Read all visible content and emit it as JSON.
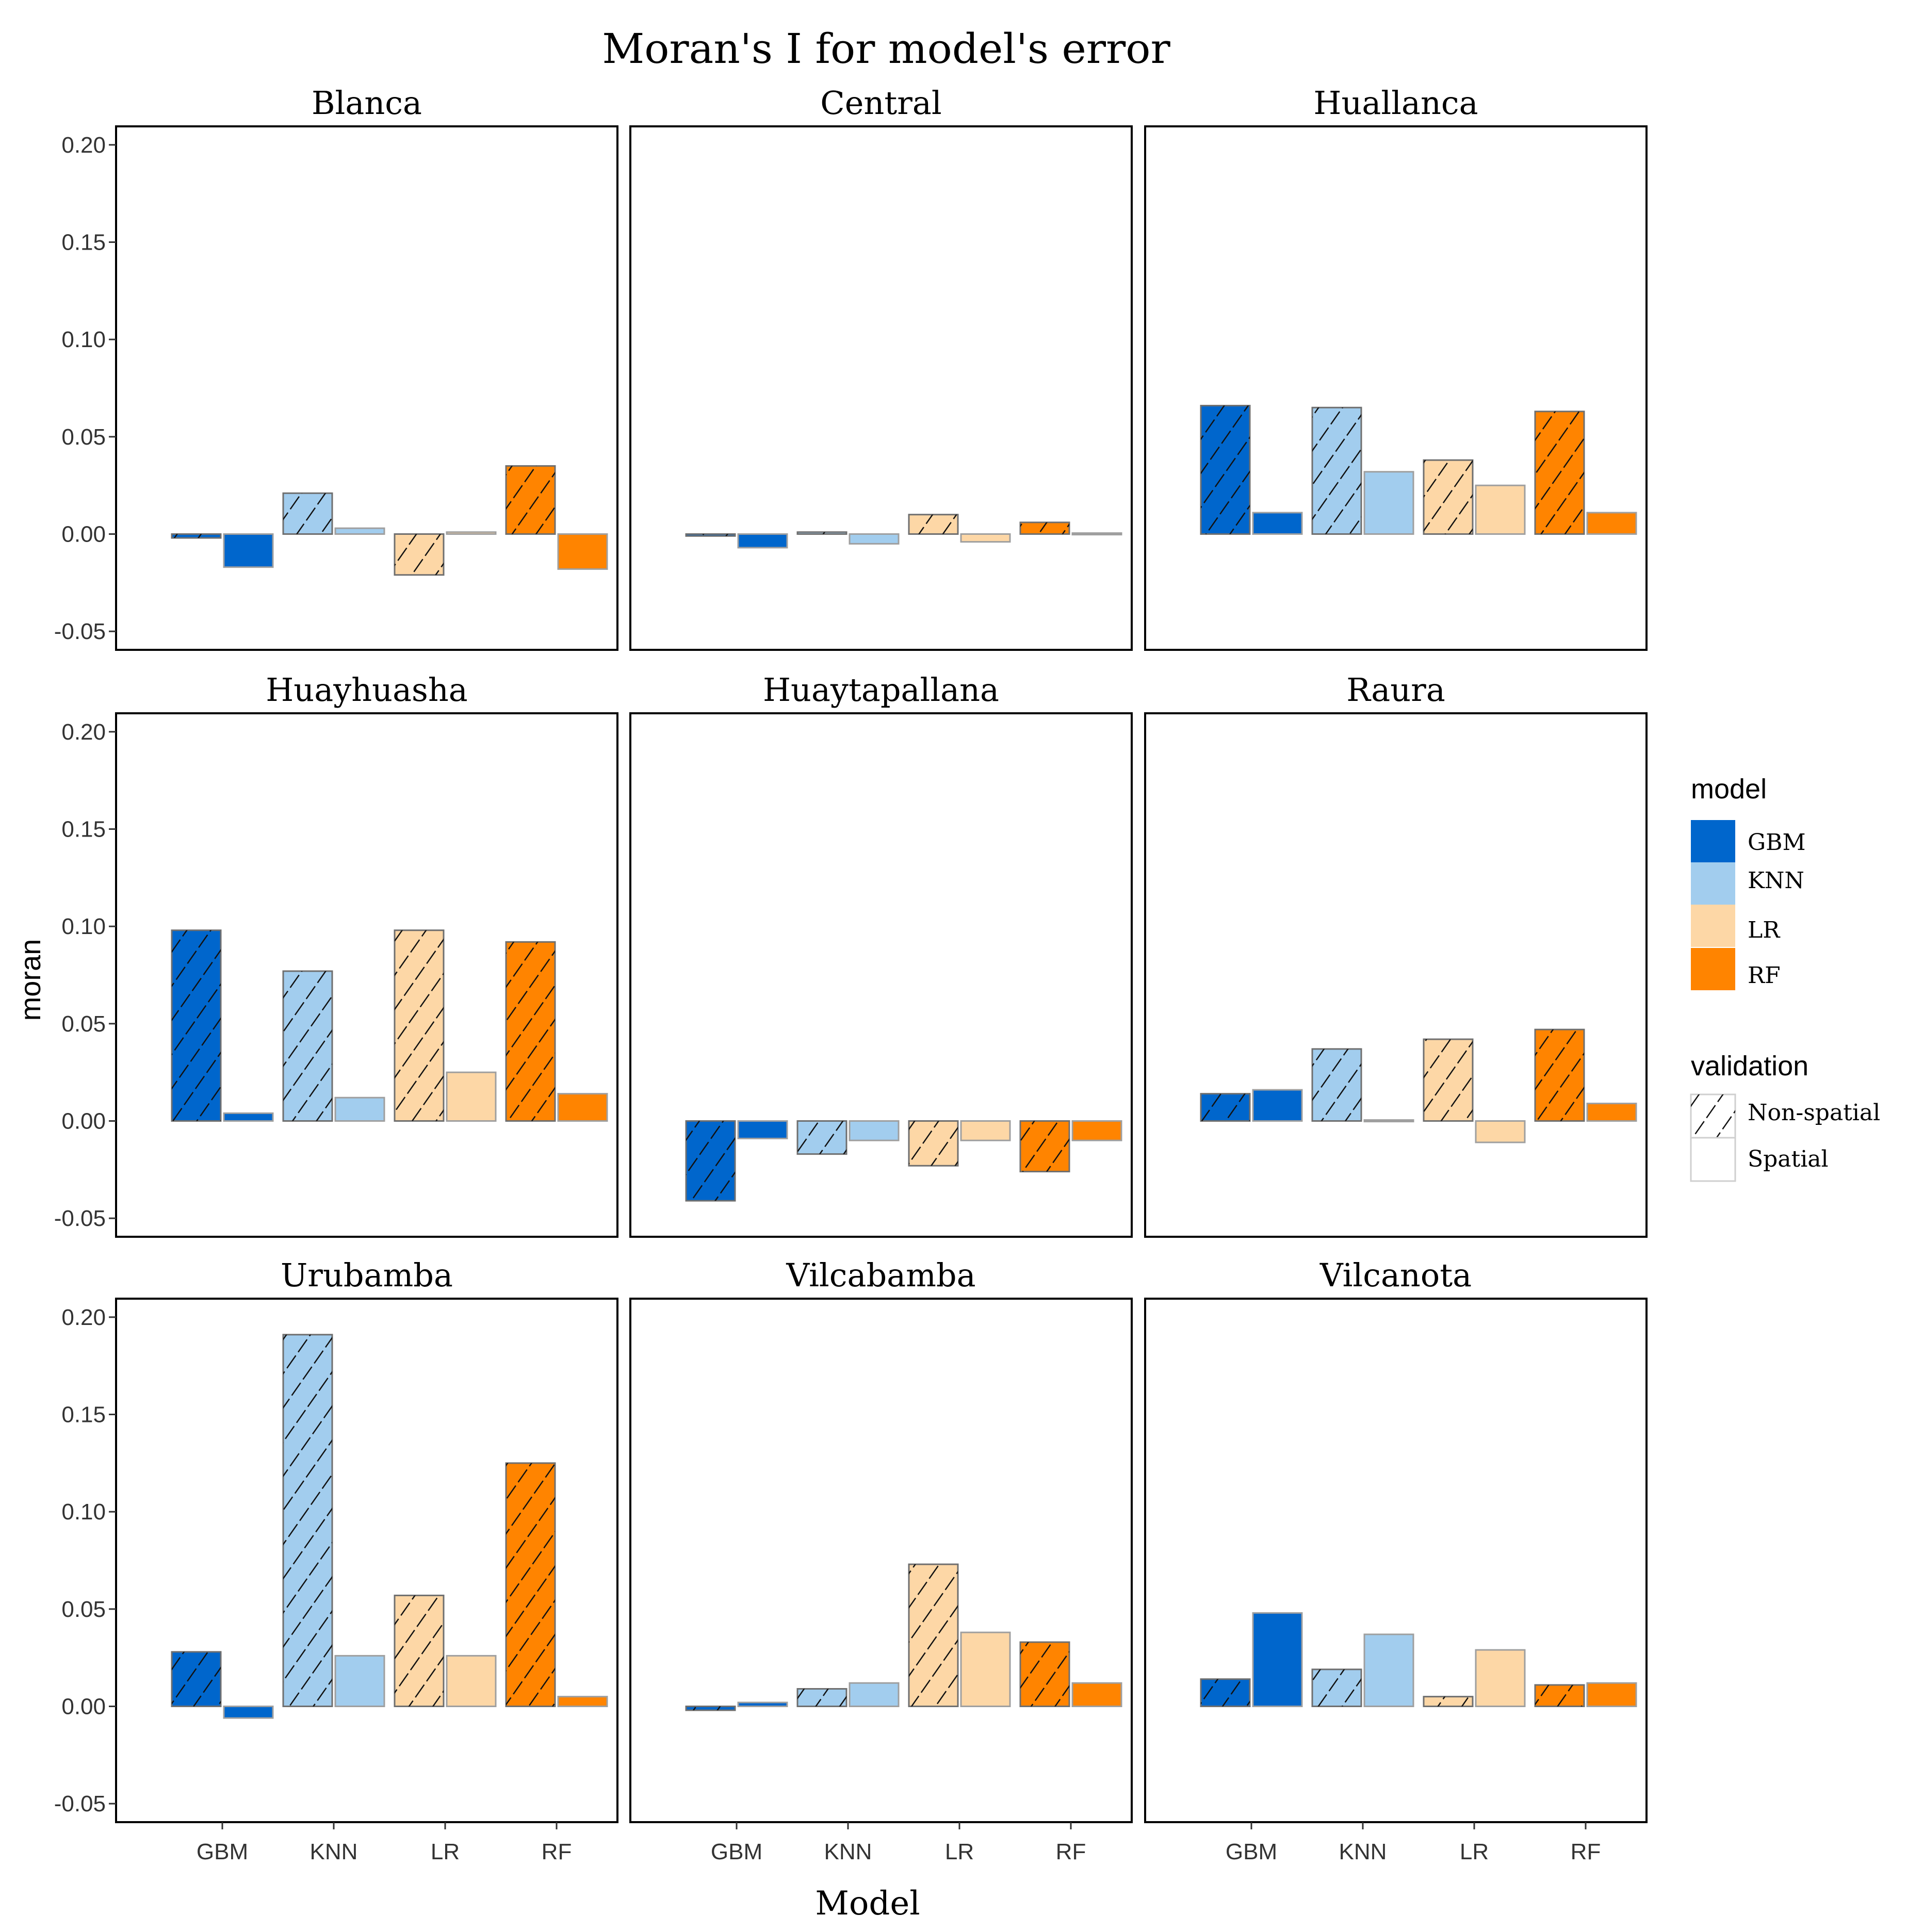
{
  "chart_data": {
    "type": "bar",
    "title": "Moran's I for model's error",
    "xlabel": "Model",
    "ylabel": "moran",
    "categories": [
      "GBM",
      "KNN",
      "LR",
      "RF"
    ],
    "ylim": [
      -0.05,
      0.2
    ],
    "yticks": [
      "0.20",
      "0.15",
      "0.10",
      "0.05",
      "0.00",
      "-0.05"
    ],
    "ytick_values": [
      0.2,
      0.15,
      0.1,
      0.05,
      0.0,
      -0.05
    ],
    "grid": false,
    "legend": {
      "placement": "right",
      "model_title": "model",
      "models": [
        {
          "name": "GBM",
          "color": "#0066cc"
        },
        {
          "name": "KNN",
          "color": "#a2cdee"
        },
        {
          "name": "LR",
          "color": "#fdd7a6"
        },
        {
          "name": "RF",
          "color": "#ff8400"
        }
      ],
      "validation_title": "validation",
      "validations": [
        {
          "name": "Non-spatial",
          "pattern": "hatched"
        },
        {
          "name": "Spatial",
          "pattern": "none"
        }
      ]
    },
    "panels": [
      {
        "name": "Blanca",
        "non_spatial": [
          -0.002,
          0.021,
          -0.021,
          0.035
        ],
        "spatial": [
          -0.017,
          0.003,
          0.001,
          -0.018
        ]
      },
      {
        "name": "Central",
        "non_spatial": [
          -0.001,
          0.001,
          0.01,
          0.006
        ],
        "spatial": [
          -0.007,
          -0.005,
          -0.004,
          0.0005
        ]
      },
      {
        "name": "Huallanca",
        "non_spatial": [
          0.066,
          0.065,
          0.038,
          0.063
        ],
        "spatial": [
          0.011,
          0.032,
          0.025,
          0.011
        ]
      },
      {
        "name": "Huayhuasha",
        "non_spatial": [
          0.098,
          0.077,
          0.098,
          0.092
        ],
        "spatial": [
          0.004,
          0.012,
          0.025,
          0.014
        ]
      },
      {
        "name": "Huaytapallana",
        "non_spatial": [
          -0.041,
          -0.017,
          -0.023,
          -0.026
        ],
        "spatial": [
          -0.009,
          -0.01,
          -0.01,
          -0.01
        ]
      },
      {
        "name": "Raura",
        "non_spatial": [
          0.014,
          0.037,
          0.042,
          0.047
        ],
        "spatial": [
          0.016,
          0.0005,
          -0.011,
          0.009
        ]
      },
      {
        "name": "Urubamba",
        "non_spatial": [
          0.028,
          0.191,
          0.057,
          0.125
        ],
        "spatial": [
          -0.006,
          0.026,
          0.026,
          0.005
        ]
      },
      {
        "name": "Vilcabamba",
        "non_spatial": [
          -0.002,
          0.009,
          0.073,
          0.033
        ],
        "spatial": [
          0.002,
          0.012,
          0.038,
          0.012
        ]
      },
      {
        "name": "Vilcanota",
        "non_spatial": [
          0.014,
          0.019,
          0.005,
          0.011
        ],
        "spatial": [
          0.048,
          0.037,
          0.029,
          0.012
        ]
      }
    ]
  }
}
